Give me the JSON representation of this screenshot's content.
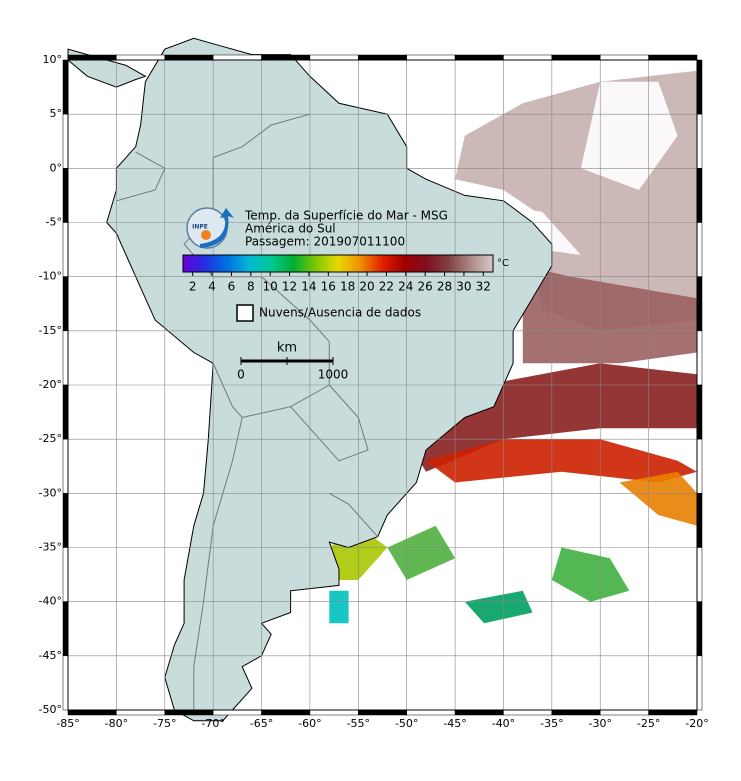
{
  "map": {
    "lon_range": [
      -85,
      -20
    ],
    "lat_range": [
      10,
      -50
    ],
    "lat_ticks": [
      {
        "value": 10,
        "label": "10°"
      },
      {
        "value": 5,
        "label": "5°"
      },
      {
        "value": 0,
        "label": "0°"
      },
      {
        "value": -5,
        "label": "-5°"
      },
      {
        "value": -10,
        "label": "-10°"
      },
      {
        "value": -15,
        "label": "-15°"
      },
      {
        "value": -20,
        "label": "-20°"
      },
      {
        "value": -25,
        "label": "-25°"
      },
      {
        "value": -30,
        "label": "-30°"
      },
      {
        "value": -35,
        "label": "-35°"
      },
      {
        "value": -40,
        "label": "-40°"
      },
      {
        "value": -45,
        "label": "-45°"
      },
      {
        "value": -50,
        "label": "-50°"
      }
    ],
    "lon_ticks": [
      {
        "value": -85,
        "label": "-85°"
      },
      {
        "value": -80,
        "label": "-80°"
      },
      {
        "value": -75,
        "label": "-75°"
      },
      {
        "value": -70,
        "label": "-70°"
      },
      {
        "value": -65,
        "label": "-65°"
      },
      {
        "value": -60,
        "label": "-60°"
      },
      {
        "value": -55,
        "label": "-55°"
      },
      {
        "value": -50,
        "label": "-50°"
      },
      {
        "value": -45,
        "label": "-45°"
      },
      {
        "value": -40,
        "label": "-40°"
      },
      {
        "value": -35,
        "label": "-35°"
      },
      {
        "value": -30,
        "label": "-30°"
      },
      {
        "value": -25,
        "label": "-25°"
      },
      {
        "value": -20,
        "label": "-20°"
      }
    ],
    "logo": "INPE",
    "title_lines": [
      "Temp. da Superfície do Mar - MSG",
      "América do Sul",
      "Passagem: 201907011100"
    ],
    "colorbar": {
      "range": [
        1,
        33
      ],
      "ticks": [
        2,
        4,
        6,
        8,
        10,
        12,
        14,
        16,
        18,
        20,
        22,
        24,
        26,
        28,
        30,
        32
      ],
      "unit": "°C",
      "colors": [
        "#6a00d8",
        "#2030e0",
        "#0070e0",
        "#00b8d8",
        "#00c890",
        "#00b030",
        "#80c800",
        "#e8d800",
        "#f09000",
        "#e02000",
        "#a00000",
        "#801020",
        "#804040",
        "#b08888",
        "#d8c8c8"
      ]
    },
    "legend_label": "Nuvens/Ausencia de dados",
    "scale_bar": {
      "unit": "km",
      "start": "0",
      "end": "1000"
    }
  }
}
